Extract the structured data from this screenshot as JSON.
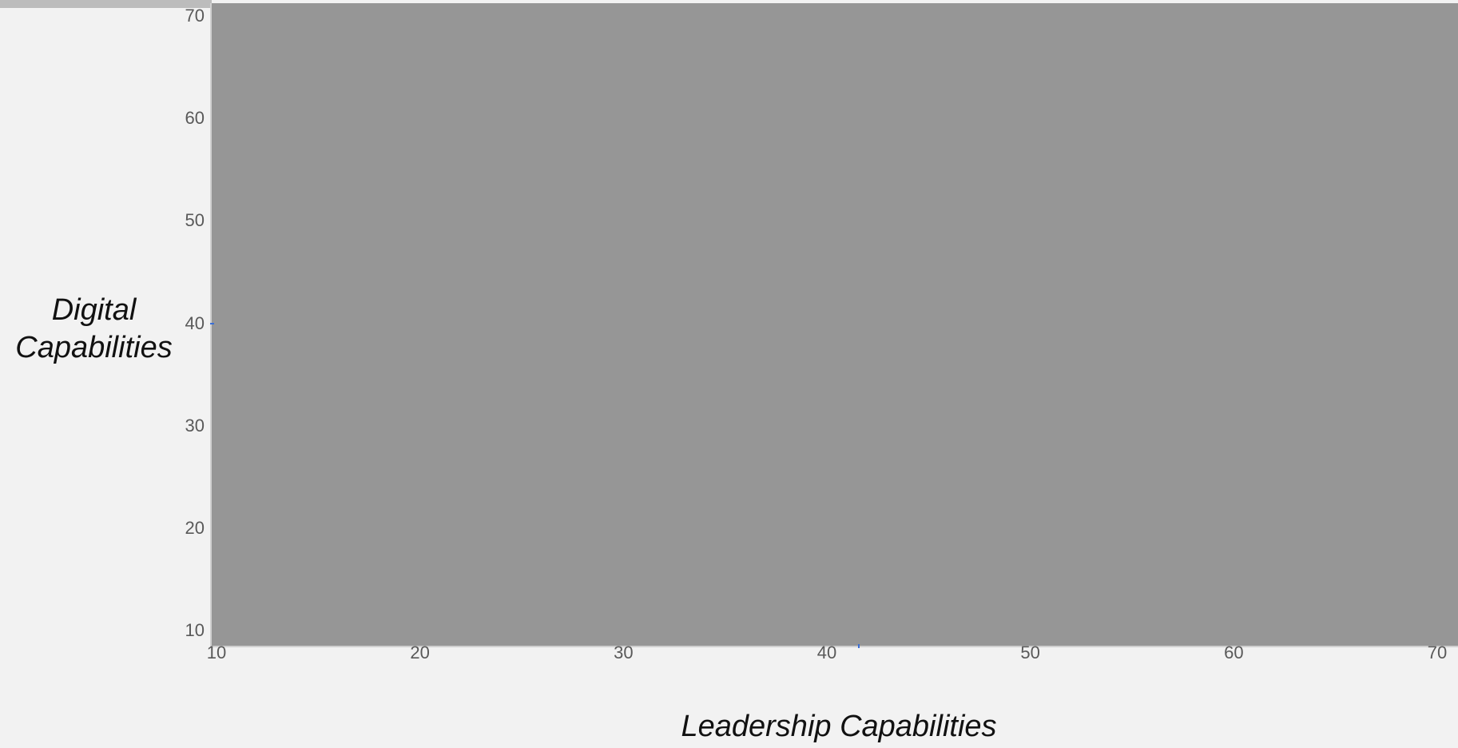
{
  "chart_data": {
    "type": "scatter",
    "title": "",
    "xlabel": "Leadership Capabilities",
    "ylabel_lines": [
      "Digital",
      "Capabilities"
    ],
    "xlim": [
      10,
      70
    ],
    "ylim": [
      10,
      70
    ],
    "xticks": [
      "10",
      "20",
      "30",
      "40",
      "50",
      "60",
      "70"
    ],
    "yticks": [
      "10",
      "20",
      "30",
      "40",
      "50",
      "60",
      "70"
    ],
    "x_axis_marker": 41.5,
    "y_axis_marker": 40,
    "plot_background": "#969696",
    "page_background": "#f2f2f2",
    "marker_color": "#3b6fd6",
    "grid": false
  }
}
